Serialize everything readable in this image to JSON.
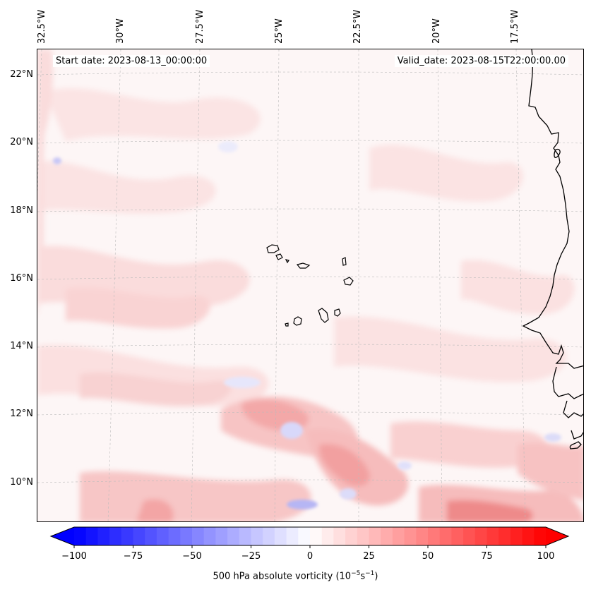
{
  "map": {
    "title_left": "Start date: 2023-08-13_00:00:00",
    "title_right": "Valid_date: 2023-08-15T22:00:00.00",
    "lon_labels": [
      "32.5°W",
      "30°W",
      "27.5°W",
      "25°W",
      "22.5°W",
      "20°W",
      "17.5°W"
    ],
    "lat_labels": [
      "22°N",
      "20°N",
      "18°N",
      "16°N",
      "14°N",
      "12°N",
      "10°N"
    ],
    "field": "500 hPa absolute vorticity"
  },
  "colorbar": {
    "min": -100,
    "max": 100,
    "ticks": [
      "−100",
      "−75",
      "−50",
      "−25",
      "0",
      "25",
      "50",
      "75",
      "100"
    ],
    "label_text": "500 hPa absolute vorticity (10",
    "label_exp1": "−5",
    "label_mid": "s",
    "label_exp2": "−1",
    "label_end": ")",
    "colormap": "bwr",
    "colors": {
      "low": "#0000ff",
      "mid": "#ffffff",
      "high": "#ff0000"
    }
  },
  "colors": {
    "background_field": "#fdf6f6",
    "coastline": "#000000",
    "gridline": "#bbbbbb"
  }
}
